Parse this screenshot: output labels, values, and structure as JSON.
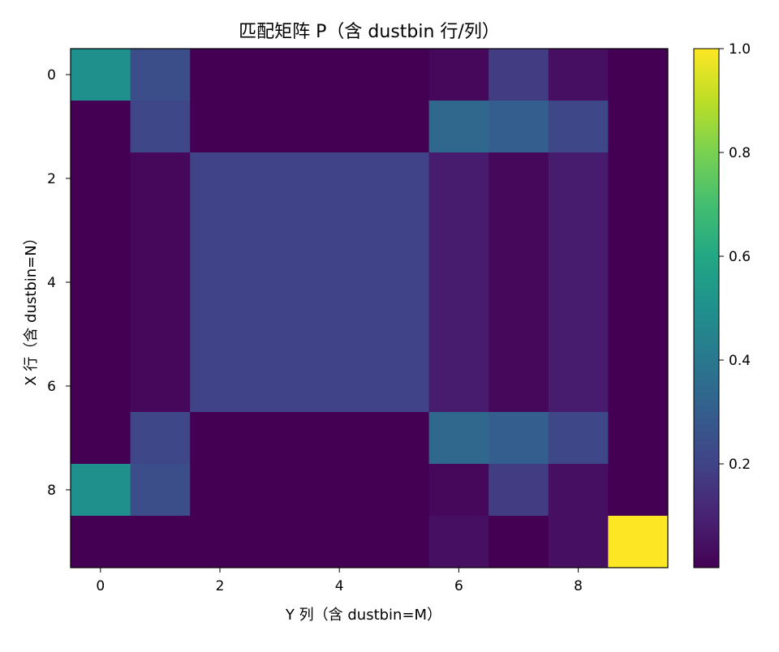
{
  "chart_data": {
    "type": "heatmap",
    "title": "匹配矩阵 P（含 dustbin 行/列）",
    "xlabel": "Y 列（含 dustbin=M）",
    "ylabel": "X 行（含 dustbin=N）",
    "x_ticks": [
      "0",
      "2",
      "4",
      "6",
      "8"
    ],
    "y_ticks": [
      "0",
      "2",
      "4",
      "6",
      "8"
    ],
    "x_tick_values": [
      0,
      2,
      4,
      6,
      8
    ],
    "y_tick_values": [
      0,
      2,
      4,
      6,
      8
    ],
    "colorbar": {
      "ticks": [
        "0.2",
        "0.4",
        "0.6",
        "0.8",
        "1.0"
      ],
      "tick_values": [
        0.2,
        0.4,
        0.6,
        0.8,
        1.0
      ],
      "range": [
        0.0,
        1.0
      ],
      "colormap": "viridis"
    },
    "rows": 10,
    "cols": 10,
    "values": [
      [
        0.5,
        0.24,
        0.0,
        0.0,
        0.0,
        0.0,
        0.02,
        0.18,
        0.04,
        0.0
      ],
      [
        0.0,
        0.22,
        0.0,
        0.0,
        0.0,
        0.0,
        0.34,
        0.3,
        0.22,
        0.0
      ],
      [
        0.0,
        0.02,
        0.2,
        0.2,
        0.2,
        0.2,
        0.08,
        0.02,
        0.08,
        0.0
      ],
      [
        0.0,
        0.02,
        0.2,
        0.2,
        0.2,
        0.2,
        0.08,
        0.02,
        0.08,
        0.0
      ],
      [
        0.0,
        0.02,
        0.2,
        0.2,
        0.2,
        0.2,
        0.08,
        0.02,
        0.08,
        0.0
      ],
      [
        0.0,
        0.02,
        0.2,
        0.2,
        0.2,
        0.2,
        0.08,
        0.02,
        0.08,
        0.0
      ],
      [
        0.0,
        0.02,
        0.2,
        0.2,
        0.2,
        0.2,
        0.08,
        0.02,
        0.08,
        0.0
      ],
      [
        0.0,
        0.22,
        0.0,
        0.0,
        0.0,
        0.0,
        0.34,
        0.3,
        0.22,
        0.0
      ],
      [
        0.5,
        0.24,
        0.0,
        0.0,
        0.0,
        0.0,
        0.02,
        0.18,
        0.04,
        0.0
      ],
      [
        0.0,
        0.0,
        0.0,
        0.0,
        0.0,
        0.0,
        0.04,
        0.0,
        0.04,
        1.0
      ]
    ]
  }
}
